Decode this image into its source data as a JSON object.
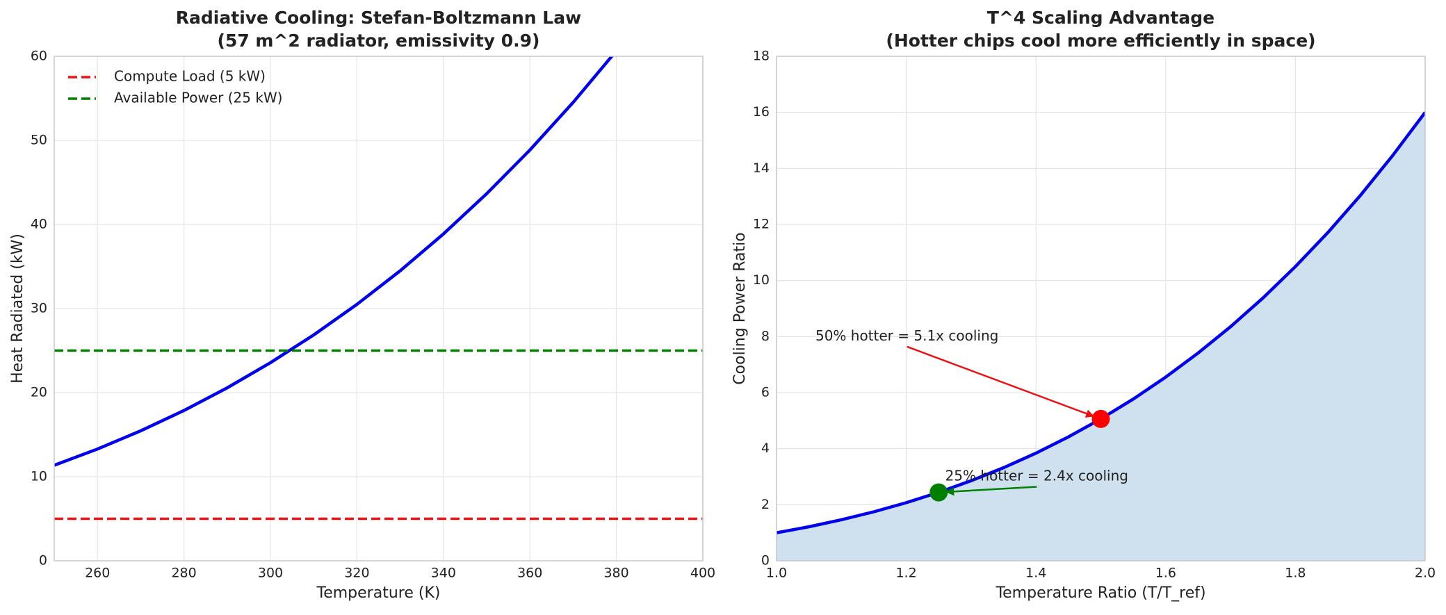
{
  "chart_data": [
    {
      "type": "line",
      "title": [
        "Radiative Cooling: Stefan-Boltzmann Law",
        "(57 m^2 radiator, emissivity 0.9)"
      ],
      "x_label": "Temperature (K)",
      "y_label": "Heat Radiated (kW)",
      "xlim": [
        250,
        400
      ],
      "xticks": [
        260,
        280,
        300,
        320,
        340,
        360,
        380,
        400
      ],
      "ylim": [
        0,
        60
      ],
      "yticks": [
        0,
        10,
        20,
        30,
        40,
        50,
        60
      ],
      "grid": true,
      "legend": "upper-left",
      "x": [
        250,
        260,
        270,
        280,
        290,
        300,
        310,
        320,
        330,
        340,
        350,
        360,
        370,
        380
      ],
      "series": [
        {
          "color": "#0000ee",
          "values": [
            11.36,
            13.29,
            15.46,
            17.88,
            20.57,
            23.56,
            26.86,
            30.5,
            34.49,
            38.87,
            43.65,
            48.85,
            54.51,
            60.65
          ]
        }
      ],
      "hlines": [
        {
          "name": "Compute Load (5 kW)",
          "value": 5,
          "color": "#ee1111"
        },
        {
          "name": "Available Power (25 kW)",
          "value": 25,
          "color": "#008000"
        }
      ]
    },
    {
      "type": "line",
      "title": [
        "T^4 Scaling Advantage",
        "(Hotter chips cool more efficiently in space)"
      ],
      "x_label": "Temperature Ratio (T/T_ref)",
      "y_label": "Cooling Power Ratio",
      "xlim": [
        1.0,
        2.0
      ],
      "xticks": [
        {
          "value": 1,
          "label": "1.0"
        },
        1.2,
        1.4,
        1.6,
        1.8,
        {
          "value": 2,
          "label": "2.0"
        }
      ],
      "ylim": [
        0,
        18
      ],
      "yticks": [
        0,
        2,
        4,
        6,
        8,
        10,
        12,
        14,
        16,
        18
      ],
      "grid": true,
      "x": [
        1.0,
        1.05,
        1.1,
        1.15,
        1.2,
        1.25,
        1.3,
        1.35,
        1.4,
        1.45,
        1.5,
        1.55,
        1.6,
        1.65,
        1.7,
        1.75,
        1.8,
        1.85,
        1.9,
        1.95,
        2.0
      ],
      "series": [
        {
          "color": "#0000ee",
          "fill": "#cfe0ee",
          "values": [
            1,
            1.2155,
            1.4641,
            1.749,
            2.0736,
            2.4414,
            2.8561,
            3.3215,
            3.8416,
            4.4205,
            5.0625,
            5.772,
            6.5536,
            7.412,
            8.3521,
            9.3789,
            10.4976,
            11.7135,
            13.0321,
            14.459,
            16
          ]
        }
      ],
      "points": [
        {
          "x": 1.5,
          "y": 5.06,
          "color": "#ff0000"
        },
        {
          "x": 1.25,
          "y": 2.44,
          "color": "#008000"
        }
      ],
      "annotations": [
        {
          "text": "50% hotter = 5.1x cooling",
          "xy": [
            1.5,
            5.06
          ],
          "xytext": [
            1.06,
            8
          ],
          "color": "#ee1111"
        },
        {
          "text": "25% hotter = 2.4x cooling",
          "xy": [
            1.25,
            2.44
          ],
          "xytext": [
            1.26,
            3
          ],
          "color": "#008000"
        }
      ]
    }
  ]
}
